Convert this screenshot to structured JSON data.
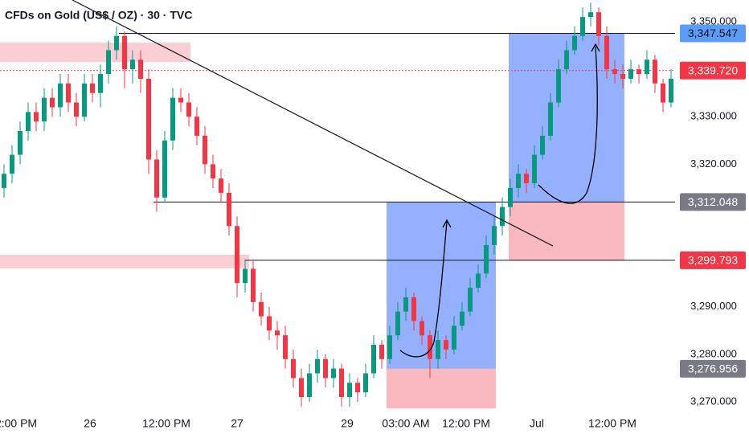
{
  "chart_data": {
    "type": "candlestick",
    "title": "CFDs on Gold (US$ / OZ) · 30 · TVC",
    "up_color": "#089981",
    "down_color": "#f23645",
    "xlim": [
      -0.5,
      83.5
    ],
    "ylim": [
      3267.97,
      3354.57
    ],
    "xticks": [
      {
        "value": 1.5,
        "label": "2:00 PM"
      },
      {
        "value": 10.7,
        "label": "26"
      },
      {
        "value": 20.2,
        "label": "12:00 PM"
      },
      {
        "value": 29,
        "label": "27"
      },
      {
        "value": 42.7,
        "label": "29"
      },
      {
        "value": 50,
        "label": "03:00 AM"
      },
      {
        "value": 57.5,
        "label": "12:00 PM"
      },
      {
        "value": 66.3,
        "label": "Jul"
      },
      {
        "value": 75.7,
        "label": "12:00 PM"
      }
    ],
    "yticks": [
      {
        "value": 3350,
        "label": "3,350.000"
      },
      {
        "value": 3330,
        "label": "3,330.000"
      },
      {
        "value": 3320,
        "label": "3,320.000"
      },
      {
        "value": 3290,
        "label": "3,290.000"
      },
      {
        "value": 3280,
        "label": "3,280.000"
      },
      {
        "value": 3270,
        "label": "3,270.000"
      }
    ],
    "ohlc": [
      [
        3315,
        3320,
        3313,
        3318
      ],
      [
        3318,
        3324,
        3316,
        3322
      ],
      [
        3322,
        3329,
        3320,
        3327
      ],
      [
        3327,
        3333,
        3325,
        3331
      ],
      [
        3331,
        3333,
        3327,
        3329
      ],
      [
        3329,
        3336,
        3327,
        3334
      ],
      [
        3334,
        3336,
        3330,
        3332
      ],
      [
        3332,
        3339,
        3330,
        3337
      ],
      [
        3337,
        3339,
        3331,
        3333
      ],
      [
        3333,
        3335,
        3328,
        3330
      ],
      [
        3330,
        3339,
        3329,
        3337
      ],
      [
        3337,
        3339,
        3333,
        3335
      ],
      [
        3335,
        3341,
        3332,
        3339
      ],
      [
        3339,
        3346,
        3337,
        3344
      ],
      [
        3344,
        3349,
        3342,
        3347
      ],
      [
        3347,
        3348,
        3336,
        3340
      ],
      [
        3340,
        3344,
        3337,
        3342
      ],
      [
        3342,
        3344,
        3335,
        3338
      ],
      [
        3338,
        3340,
        3318,
        3321
      ],
      [
        3321,
        3323,
        3310,
        3313
      ],
      [
        3313,
        3327,
        3312,
        3325
      ],
      [
        3325,
        3336,
        3323,
        3334
      ],
      [
        3334,
        3336,
        3331,
        3333
      ],
      [
        3333,
        3335,
        3328,
        3330
      ],
      [
        3330,
        3332,
        3324,
        3326
      ],
      [
        3326,
        3328,
        3318,
        3320
      ],
      [
        3320,
        3322,
        3315,
        3317
      ],
      [
        3317,
        3319,
        3312,
        3314
      ],
      [
        3314,
        3316,
        3305,
        3307
      ],
      [
        3307,
        3309,
        3292,
        3295
      ],
      [
        3295,
        3300,
        3293,
        3298
      ],
      [
        3298,
        3300,
        3289,
        3291
      ],
      [
        3291,
        3293,
        3286,
        3288
      ],
      [
        3288,
        3290,
        3283,
        3285
      ],
      [
        3285,
        3287,
        3281,
        3284
      ],
      [
        3284,
        3286,
        3277,
        3279
      ],
      [
        3279,
        3281,
        3273,
        3275
      ],
      [
        3275,
        3277,
        3269,
        3271
      ],
      [
        3271,
        3278,
        3270,
        3276
      ],
      [
        3276,
        3281,
        3274,
        3279
      ],
      [
        3279,
        3280,
        3273,
        3275
      ],
      [
        3275,
        3279,
        3273,
        3277
      ],
      [
        3277,
        3278,
        3269,
        3271
      ],
      [
        3271,
        3276,
        3269,
        3274
      ],
      [
        3274,
        3275,
        3270,
        3272
      ],
      [
        3272,
        3278,
        3271,
        3276
      ],
      [
        3276,
        3284,
        3275,
        3282
      ],
      [
        3282,
        3283,
        3277,
        3279
      ],
      [
        3279,
        3286,
        3278,
        3284
      ],
      [
        3284,
        3291,
        3283,
        3289
      ],
      [
        3289,
        3294,
        3287,
        3292
      ],
      [
        3292,
        3293,
        3285,
        3287
      ],
      [
        3287,
        3288,
        3282,
        3284
      ],
      [
        3284,
        3285,
        3275,
        3279
      ],
      [
        3279,
        3285,
        3277,
        3283
      ],
      [
        3283,
        3284,
        3279,
        3281
      ],
      [
        3281,
        3288,
        3280,
        3286
      ],
      [
        3286,
        3291,
        3285,
        3289
      ],
      [
        3289,
        3296,
        3288,
        3294
      ],
      [
        3294,
        3299,
        3293,
        3297
      ],
      [
        3297,
        3305,
        3296,
        3303
      ],
      [
        3303,
        3309,
        3301,
        3307
      ],
      [
        3307,
        3313,
        3305,
        3311
      ],
      [
        3311,
        3317,
        3309,
        3315
      ],
      [
        3315,
        3320,
        3313,
        3318
      ],
      [
        3318,
        3319,
        3314,
        3316
      ],
      [
        3316,
        3324,
        3315,
        3322
      ],
      [
        3322,
        3328,
        3321,
        3326
      ],
      [
        3326,
        3335,
        3325,
        3333
      ],
      [
        3333,
        3342,
        3332,
        3340
      ],
      [
        3340,
        3346,
        3339,
        3344
      ],
      [
        3344,
        3349,
        3343,
        3347
      ],
      [
        3347,
        3353,
        3346,
        3351
      ],
      [
        3351,
        3354,
        3349,
        3352
      ],
      [
        3352,
        3353,
        3345,
        3347
      ],
      [
        3347,
        3349,
        3338,
        3340
      ],
      [
        3340,
        3342,
        3337,
        3339
      ],
      [
        3339,
        3341,
        3336,
        3338
      ],
      [
        3338,
        3342,
        3337,
        3340
      ],
      [
        3340,
        3341,
        3337,
        3339
      ],
      [
        3339,
        3344,
        3338,
        3342
      ],
      [
        3342,
        3343,
        3335,
        3337
      ],
      [
        3337,
        3338,
        3331,
        3333
      ],
      [
        3333,
        3340,
        3332,
        3338
      ]
    ],
    "zones": [
      {
        "x": [
          -0.5,
          23.2
        ],
        "y": [
          3341.5,
          3345.6
        ]
      },
      {
        "x": [
          -0.5,
          30.5
        ],
        "y": [
          3298.1,
          3300.95
        ]
      }
    ],
    "positions": [
      {
        "x": [
          47.6,
          61.2
        ],
        "entry": 3276.956,
        "target": 3312.048,
        "stop": 3268.6
      },
      {
        "x": [
          62.8,
          77.2
        ],
        "entry": 3312.048,
        "target": 3347.547,
        "stop": 3299.793
      }
    ],
    "trendline": {
      "x": [
        8.5,
        68.3
      ],
      "y": [
        3354.57,
        3302.8
      ]
    },
    "levels": [
      {
        "value": 3347.547,
        "label": "3,347.547",
        "color": "#5b9cf6",
        "text_color": "#131722",
        "from": 14.3,
        "style": "solid"
      },
      {
        "value": 3339.72,
        "label": "3,339.720",
        "color": "#f23645",
        "text_color": "#ffffff",
        "from": -0.5,
        "style": "dotted"
      },
      {
        "value": 3312.048,
        "label": "3,312.048",
        "color": "#787b86",
        "text_color": "#ffffff",
        "from": 18.6,
        "style": "solid"
      },
      {
        "value": 3299.793,
        "label": "3,299.793",
        "color": "#f23645",
        "text_color": "#ffffff",
        "from": 30,
        "style": "solid"
      },
      {
        "value": 3276.956,
        "label": "3,276.956",
        "color": "#787b86",
        "text_color": "#ffffff"
      }
    ]
  }
}
